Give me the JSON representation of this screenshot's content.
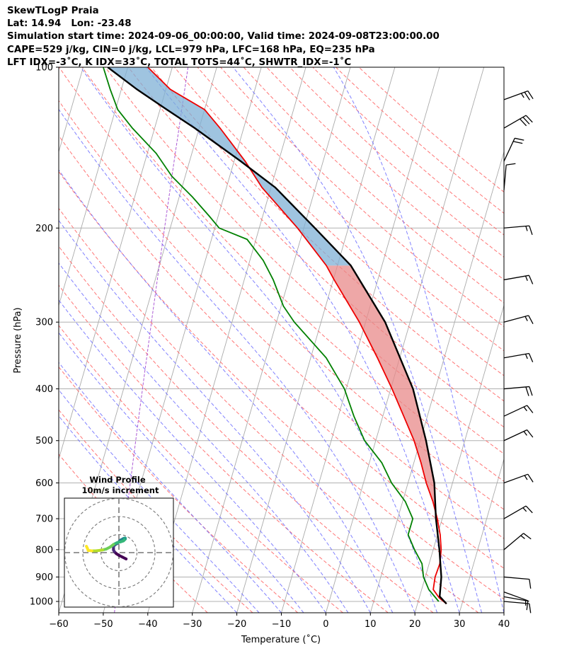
{
  "header": {
    "line1": "SkewTLogP Praia",
    "line2": "Lat: 14.94   Lon: -23.48",
    "line3": "Simulation start time: 2024-09-06_00:00:00, Valid time: 2024-09-08T23:00:00.00",
    "line4": "CAPE=529 j/kg, CIN=0 j/kg, LCL=979 hPa, LFC=168 hPa, EQ=235 hPa",
    "line5": "LFT IDX=-3˚C, K IDX=33˚C, TOTAL TOTS=44˚C, SHWTR_IDX=-1˚C"
  },
  "chart_data": {
    "type": "line",
    "subtype": "skew-T log-P",
    "xlabel": "Temperature (˚C)",
    "ylabel": "Pressure (hPa)",
    "xlim": [
      -60,
      40
    ],
    "ylim": [
      1050,
      100
    ],
    "x_ticks": [
      -60,
      -50,
      -40,
      -30,
      -20,
      -10,
      0,
      10,
      20,
      30,
      40
    ],
    "y_ticks": [
      1000,
      900,
      800,
      700,
      600,
      500,
      400,
      300,
      200,
      100
    ],
    "y_scale": "log",
    "grid": true,
    "colors": {
      "temperature": "#ee0000",
      "dewpoint": "#008000",
      "parcel": "#000000",
      "cape_fill": "#e88a8a",
      "cin_fill": "#7fb0d6",
      "dry_adiabat": "#ff6666",
      "moist_adiabat": "#6b6bff",
      "isotherm": "#aaaaaa",
      "mixing_ratio": "#9933cc"
    },
    "temperature_profile": {
      "pressure": [
        1010,
        985,
        950,
        900,
        850,
        800,
        750,
        700,
        650,
        600,
        550,
        500,
        450,
        400,
        350,
        300,
        250,
        235,
        200,
        168,
        150,
        130,
        120,
        110,
        100
      ],
      "value": [
        26.5,
        24.5,
        22.6,
        22.2,
        22.4,
        21.8,
        20.6,
        18.9,
        16.8,
        14.1,
        11.6,
        8.6,
        4.7,
        0.3,
        -5.0,
        -11.4,
        -19.8,
        -22.5,
        -31.4,
        -42.0,
        -47.5,
        -55.3,
        -60.0,
        -69.0,
        -75.5
      ]
    },
    "dewpoint_profile": {
      "pressure": [
        1000,
        950,
        900,
        850,
        800,
        750,
        700,
        650,
        600,
        550,
        500,
        450,
        400,
        350,
        300,
        280,
        250,
        230,
        210,
        200,
        190,
        175,
        160,
        145,
        130,
        120,
        110,
        100
      ],
      "value": [
        24.6,
        21.6,
        19.6,
        18.4,
        15.8,
        13.4,
        13.4,
        10.6,
        6.3,
        2.8,
        -2.5,
        -6.5,
        -10.4,
        -16.5,
        -26.0,
        -29.5,
        -33.5,
        -37.0,
        -42.0,
        -49.0,
        -52.0,
        -57.0,
        -63.0,
        -68.0,
        -75.0,
        -79.5,
        -82.5,
        -85.5
      ]
    },
    "parcel_profile": {
      "pressure": [
        1010,
        979,
        900,
        800,
        700,
        600,
        500,
        400,
        300,
        235,
        200,
        168,
        150,
        130,
        120,
        110,
        100
      ],
      "value": [
        26.5,
        24.5,
        23.6,
        21.4,
        18.6,
        15.9,
        11.3,
        5.0,
        -5.6,
        -17.0,
        -27.5,
        -39.0,
        -48.5,
        -61.0,
        -68.5,
        -76.5,
        -84.5
      ]
    },
    "lcl_pressure": 979,
    "lfc_pressure": 168,
    "el_pressure": 235,
    "wind_barbs": {
      "units": "m/s",
      "pressure": [
        1000,
        980,
        960,
        900,
        800,
        700,
        600,
        500,
        450,
        400,
        350,
        300,
        250,
        200,
        170,
        150,
        130,
        115
      ],
      "speed_ms": [
        4,
        3,
        4,
        5,
        8,
        9,
        7,
        8,
        7,
        11,
        7,
        8,
        9,
        7,
        6,
        11,
        15,
        12
      ],
      "direction_deg": [
        95,
        100,
        110,
        95,
        50,
        60,
        70,
        65,
        65,
        85,
        80,
        75,
        80,
        85,
        5,
        25,
        60,
        70
      ]
    },
    "hodograph": {
      "title": "Wind Profile",
      "subtitle": "10m/s increment",
      "rings_ms": [
        10,
        20,
        30
      ],
      "u_ms": [
        4.0,
        2.0,
        0.0,
        -1.5,
        -2.5,
        -3.0,
        -3.0,
        -3.0,
        -2.5,
        -2.0,
        -1.0,
        -0.5,
        0.0,
        0.5,
        1.0,
        2.0,
        2.5,
        3.0,
        3.5,
        3.5,
        3.0,
        2.5,
        1.0,
        -1.0,
        -3.0,
        -5.0,
        -7.0,
        -9.0,
        -11.0,
        -13.0,
        -15.0,
        -17.0,
        -17.5,
        -18.0
      ],
      "v_ms": [
        -3.5,
        -2.5,
        -1.5,
        -0.5,
        0.5,
        1.5,
        2.5,
        3.5,
        4.0,
        4.5,
        5.0,
        5.5,
        6.0,
        6.5,
        7.0,
        7.5,
        7.8,
        8.0,
        8.0,
        7.5,
        7.0,
        6.5,
        6.0,
        5.5,
        4.5,
        3.0,
        2.0,
        1.5,
        1.2,
        1.0,
        1.0,
        1.2,
        2.5,
        3.5
      ]
    }
  }
}
